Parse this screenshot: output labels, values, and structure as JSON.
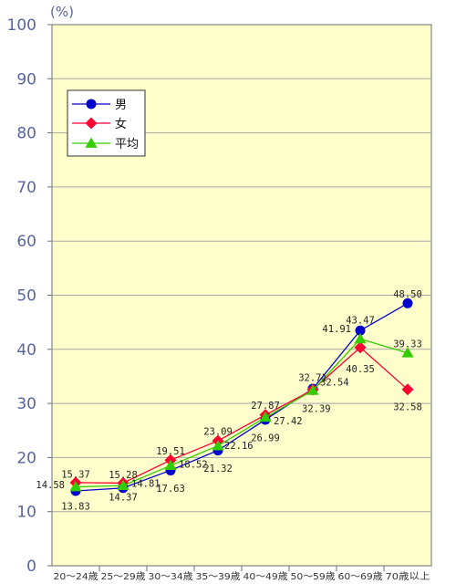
{
  "chart_data": {
    "type": "line",
    "unit_label": "(%)",
    "categories": [
      "20～24歳",
      "25～29歳",
      "30～34歳",
      "35～39歳",
      "40～49歳",
      "50～59歳",
      "60～69歳",
      "70歳以上"
    ],
    "ylim": [
      0,
      100
    ],
    "yticks": [
      0,
      10,
      20,
      30,
      40,
      50,
      60,
      70,
      80,
      90,
      100
    ],
    "grid": "horizontal",
    "legend_position": "top-left",
    "series": [
      {
        "name": "男",
        "marker": "circle",
        "color": "#0000cc",
        "values": [
          13.83,
          14.37,
          17.63,
          21.32,
          26.99,
          32.71,
          43.47,
          48.5
        ],
        "labels": [
          "13.83",
          "14.37",
          "17.63",
          "21.32",
          "26.99",
          "32.71",
          "43.47",
          "48.50"
        ]
      },
      {
        "name": "女",
        "marker": "diamond",
        "color": "#ff0033",
        "values": [
          15.37,
          15.28,
          19.51,
          23.09,
          27.87,
          32.54,
          40.35,
          32.58
        ],
        "labels": [
          "15.37",
          "15.28",
          "19.51",
          "23.09",
          "27.87",
          "32.54",
          "40.35",
          "32.58"
        ]
      },
      {
        "name": "平均",
        "marker": "triangle",
        "color": "#33cc00",
        "values": [
          14.58,
          14.81,
          18.52,
          22.16,
          27.42,
          32.39,
          41.91,
          39.33
        ],
        "labels": [
          "14.58",
          "14.81",
          "18.52",
          "22.16",
          "27.42",
          "32.39",
          "41.91",
          "39.33"
        ]
      }
    ]
  }
}
